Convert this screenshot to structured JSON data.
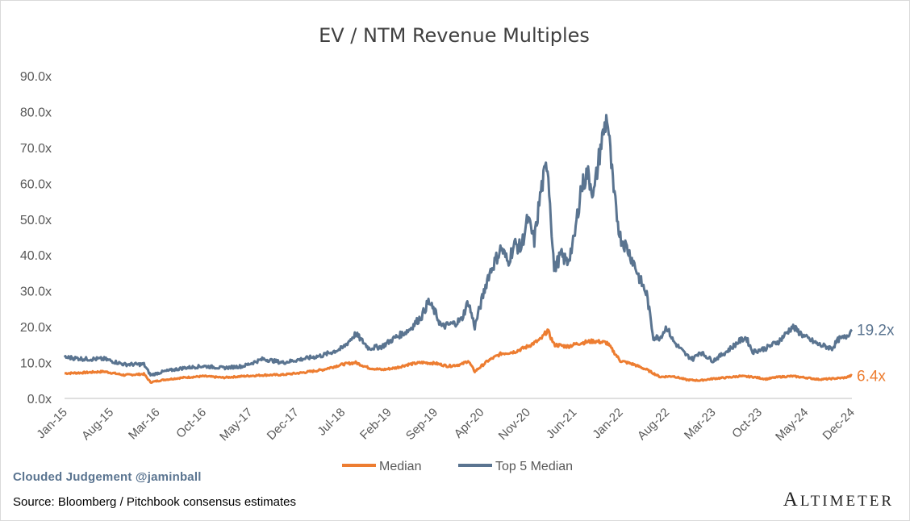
{
  "chart_data": {
    "type": "line",
    "title": "EV / NTM Revenue Multiples",
    "xlabel": "",
    "ylabel": "",
    "ylim": [
      0,
      90
    ],
    "yticks": [
      "0.0x",
      "10.0x",
      "20.0x",
      "30.0x",
      "40.0x",
      "50.0x",
      "60.0x",
      "70.0x",
      "80.0x",
      "90.0x"
    ],
    "xticks": [
      "Jan-15",
      "Aug-15",
      "Mar-16",
      "Oct-16",
      "May-17",
      "Dec-17",
      "Jul-18",
      "Feb-19",
      "Sep-19",
      "Apr-20",
      "Nov-20",
      "Jun-21",
      "Jan-22",
      "Aug-22",
      "Mar-23",
      "Oct-23",
      "May-24",
      "Dec-24"
    ],
    "legend_position": "bottom",
    "series": [
      {
        "name": "Median",
        "color": "#ed7d31",
        "end_label": "6.4x",
        "points": [
          [
            "Jan-15",
            7.0
          ],
          [
            "Apr-15",
            7.2
          ],
          [
            "Jul-15",
            7.5
          ],
          [
            "Oct-15",
            6.5
          ],
          [
            "Jan-16",
            6.8
          ],
          [
            "Feb-16",
            4.5
          ],
          [
            "Apr-16",
            5.2
          ],
          [
            "Jul-16",
            5.8
          ],
          [
            "Oct-16",
            6.2
          ],
          [
            "Jan-17",
            5.8
          ],
          [
            "Apr-17",
            6.2
          ],
          [
            "Jul-17",
            6.5
          ],
          [
            "Oct-17",
            6.6
          ],
          [
            "Jan-18",
            7.2
          ],
          [
            "Apr-18",
            8.0
          ],
          [
            "Jul-18",
            9.5
          ],
          [
            "Sep-18",
            10.0
          ],
          [
            "Nov-18",
            8.5
          ],
          [
            "Jan-19",
            8.0
          ],
          [
            "Mar-19",
            8.5
          ],
          [
            "May-19",
            9.5
          ],
          [
            "Jul-19",
            10.0
          ],
          [
            "Sep-19",
            9.8
          ],
          [
            "Nov-19",
            9.0
          ],
          [
            "Jan-20",
            9.5
          ],
          [
            "Feb-20",
            10.5
          ],
          [
            "Mar-20",
            7.5
          ],
          [
            "May-20",
            10.5
          ],
          [
            "Jul-20",
            12.5
          ],
          [
            "Sep-20",
            13.0
          ],
          [
            "Nov-20",
            14.5
          ],
          [
            "Jan-21",
            16.5
          ],
          [
            "Feb-21",
            19.0
          ],
          [
            "Mar-21",
            15.0
          ],
          [
            "May-21",
            14.5
          ],
          [
            "Jul-21",
            15.5
          ],
          [
            "Sep-21",
            16.0
          ],
          [
            "Nov-21",
            15.5
          ],
          [
            "Dec-21",
            13.0
          ],
          [
            "Jan-22",
            10.5
          ],
          [
            "Mar-22",
            9.5
          ],
          [
            "May-22",
            8.0
          ],
          [
            "Jul-22",
            6.0
          ],
          [
            "Sep-22",
            6.2
          ],
          [
            "Nov-22",
            5.2
          ],
          [
            "Jan-23",
            5.0
          ],
          [
            "Mar-23",
            5.5
          ],
          [
            "May-23",
            5.8
          ],
          [
            "Jul-23",
            6.2
          ],
          [
            "Sep-23",
            6.0
          ],
          [
            "Nov-23",
            5.4
          ],
          [
            "Jan-24",
            6.0
          ],
          [
            "Mar-24",
            6.2
          ],
          [
            "May-24",
            5.8
          ],
          [
            "Jul-24",
            5.3
          ],
          [
            "Sep-24",
            5.5
          ],
          [
            "Nov-24",
            5.8
          ],
          [
            "Dec-24",
            6.4
          ]
        ]
      },
      {
        "name": "Top 5 Median",
        "color": "#5a7490",
        "end_label": "19.2x",
        "points": [
          [
            "Jan-15",
            11.5
          ],
          [
            "Apr-15",
            11.0
          ],
          [
            "Jul-15",
            11.0
          ],
          [
            "Oct-15",
            9.5
          ],
          [
            "Jan-16",
            9.5
          ],
          [
            "Feb-16",
            6.5
          ],
          [
            "Apr-16",
            7.5
          ],
          [
            "Jul-16",
            8.5
          ],
          [
            "Oct-16",
            9.0
          ],
          [
            "Jan-17",
            8.5
          ],
          [
            "Apr-17",
            9.0
          ],
          [
            "Jul-17",
            11.0
          ],
          [
            "Oct-17",
            10.0
          ],
          [
            "Jan-18",
            11.0
          ],
          [
            "Apr-18",
            12.0
          ],
          [
            "Jul-18",
            14.0
          ],
          [
            "Sep-18",
            18.0
          ],
          [
            "Nov-18",
            14.0
          ],
          [
            "Jan-19",
            14.5
          ],
          [
            "Mar-19",
            17.0
          ],
          [
            "May-19",
            19.0
          ],
          [
            "Jul-19",
            23.0
          ],
          [
            "Aug-19",
            27.0
          ],
          [
            "Sep-19",
            24.0
          ],
          [
            "Oct-19",
            20.0
          ],
          [
            "Dec-19",
            21.0
          ],
          [
            "Jan-20",
            22.0
          ],
          [
            "Feb-20",
            27.0
          ],
          [
            "Mar-20",
            20.0
          ],
          [
            "May-20",
            34.0
          ],
          [
            "Jul-20",
            42.0
          ],
          [
            "Aug-20",
            38.0
          ],
          [
            "Sep-20",
            43.0
          ],
          [
            "Oct-20",
            42.0
          ],
          [
            "Nov-20",
            50.0
          ],
          [
            "Dec-20",
            44.0
          ],
          [
            "Jan-21",
            58.0
          ],
          [
            "Feb-21",
            66.0
          ],
          [
            "Mar-21",
            36.0
          ],
          [
            "Apr-21",
            40.0
          ],
          [
            "May-21",
            38.0
          ],
          [
            "Jun-21",
            44.0
          ],
          [
            "Jul-21",
            58.0
          ],
          [
            "Aug-21",
            63.0
          ],
          [
            "Sep-21",
            57.0
          ],
          [
            "Oct-21",
            70.0
          ],
          [
            "Nov-21",
            79.0
          ],
          [
            "Dec-21",
            57.0
          ],
          [
            "Jan-22",
            45.0
          ],
          [
            "Feb-22",
            42.0
          ],
          [
            "Mar-22",
            38.0
          ],
          [
            "Apr-22",
            33.0
          ],
          [
            "May-22",
            29.0
          ],
          [
            "Jun-22",
            17.0
          ],
          [
            "Jul-22",
            17.0
          ],
          [
            "Aug-22",
            20.0
          ],
          [
            "Sep-22",
            16.0
          ],
          [
            "Oct-22",
            14.0
          ],
          [
            "Nov-22",
            12.0
          ],
          [
            "Dec-22",
            11.0
          ],
          [
            "Jan-23",
            13.0
          ],
          [
            "Mar-23",
            10.5
          ],
          [
            "May-23",
            13.0
          ],
          [
            "Jul-23",
            16.0
          ],
          [
            "Aug-23",
            17.0
          ],
          [
            "Sep-23",
            13.0
          ],
          [
            "Nov-23",
            14.0
          ],
          [
            "Jan-24",
            16.0
          ],
          [
            "Mar-24",
            20.0
          ],
          [
            "May-24",
            17.0
          ],
          [
            "Jul-24",
            15.0
          ],
          [
            "Sep-24",
            14.0
          ],
          [
            "Oct-24",
            16.5
          ],
          [
            "Nov-24",
            17.0
          ],
          [
            "Dec-24",
            19.2
          ]
        ]
      }
    ]
  },
  "footer": {
    "watermark": "Clouded Judgement @jaminball",
    "source": "Source: Bloomberg / Pitchbook consensus estimates",
    "logo_big_a": "A",
    "logo_rest": "LTIMETER"
  }
}
